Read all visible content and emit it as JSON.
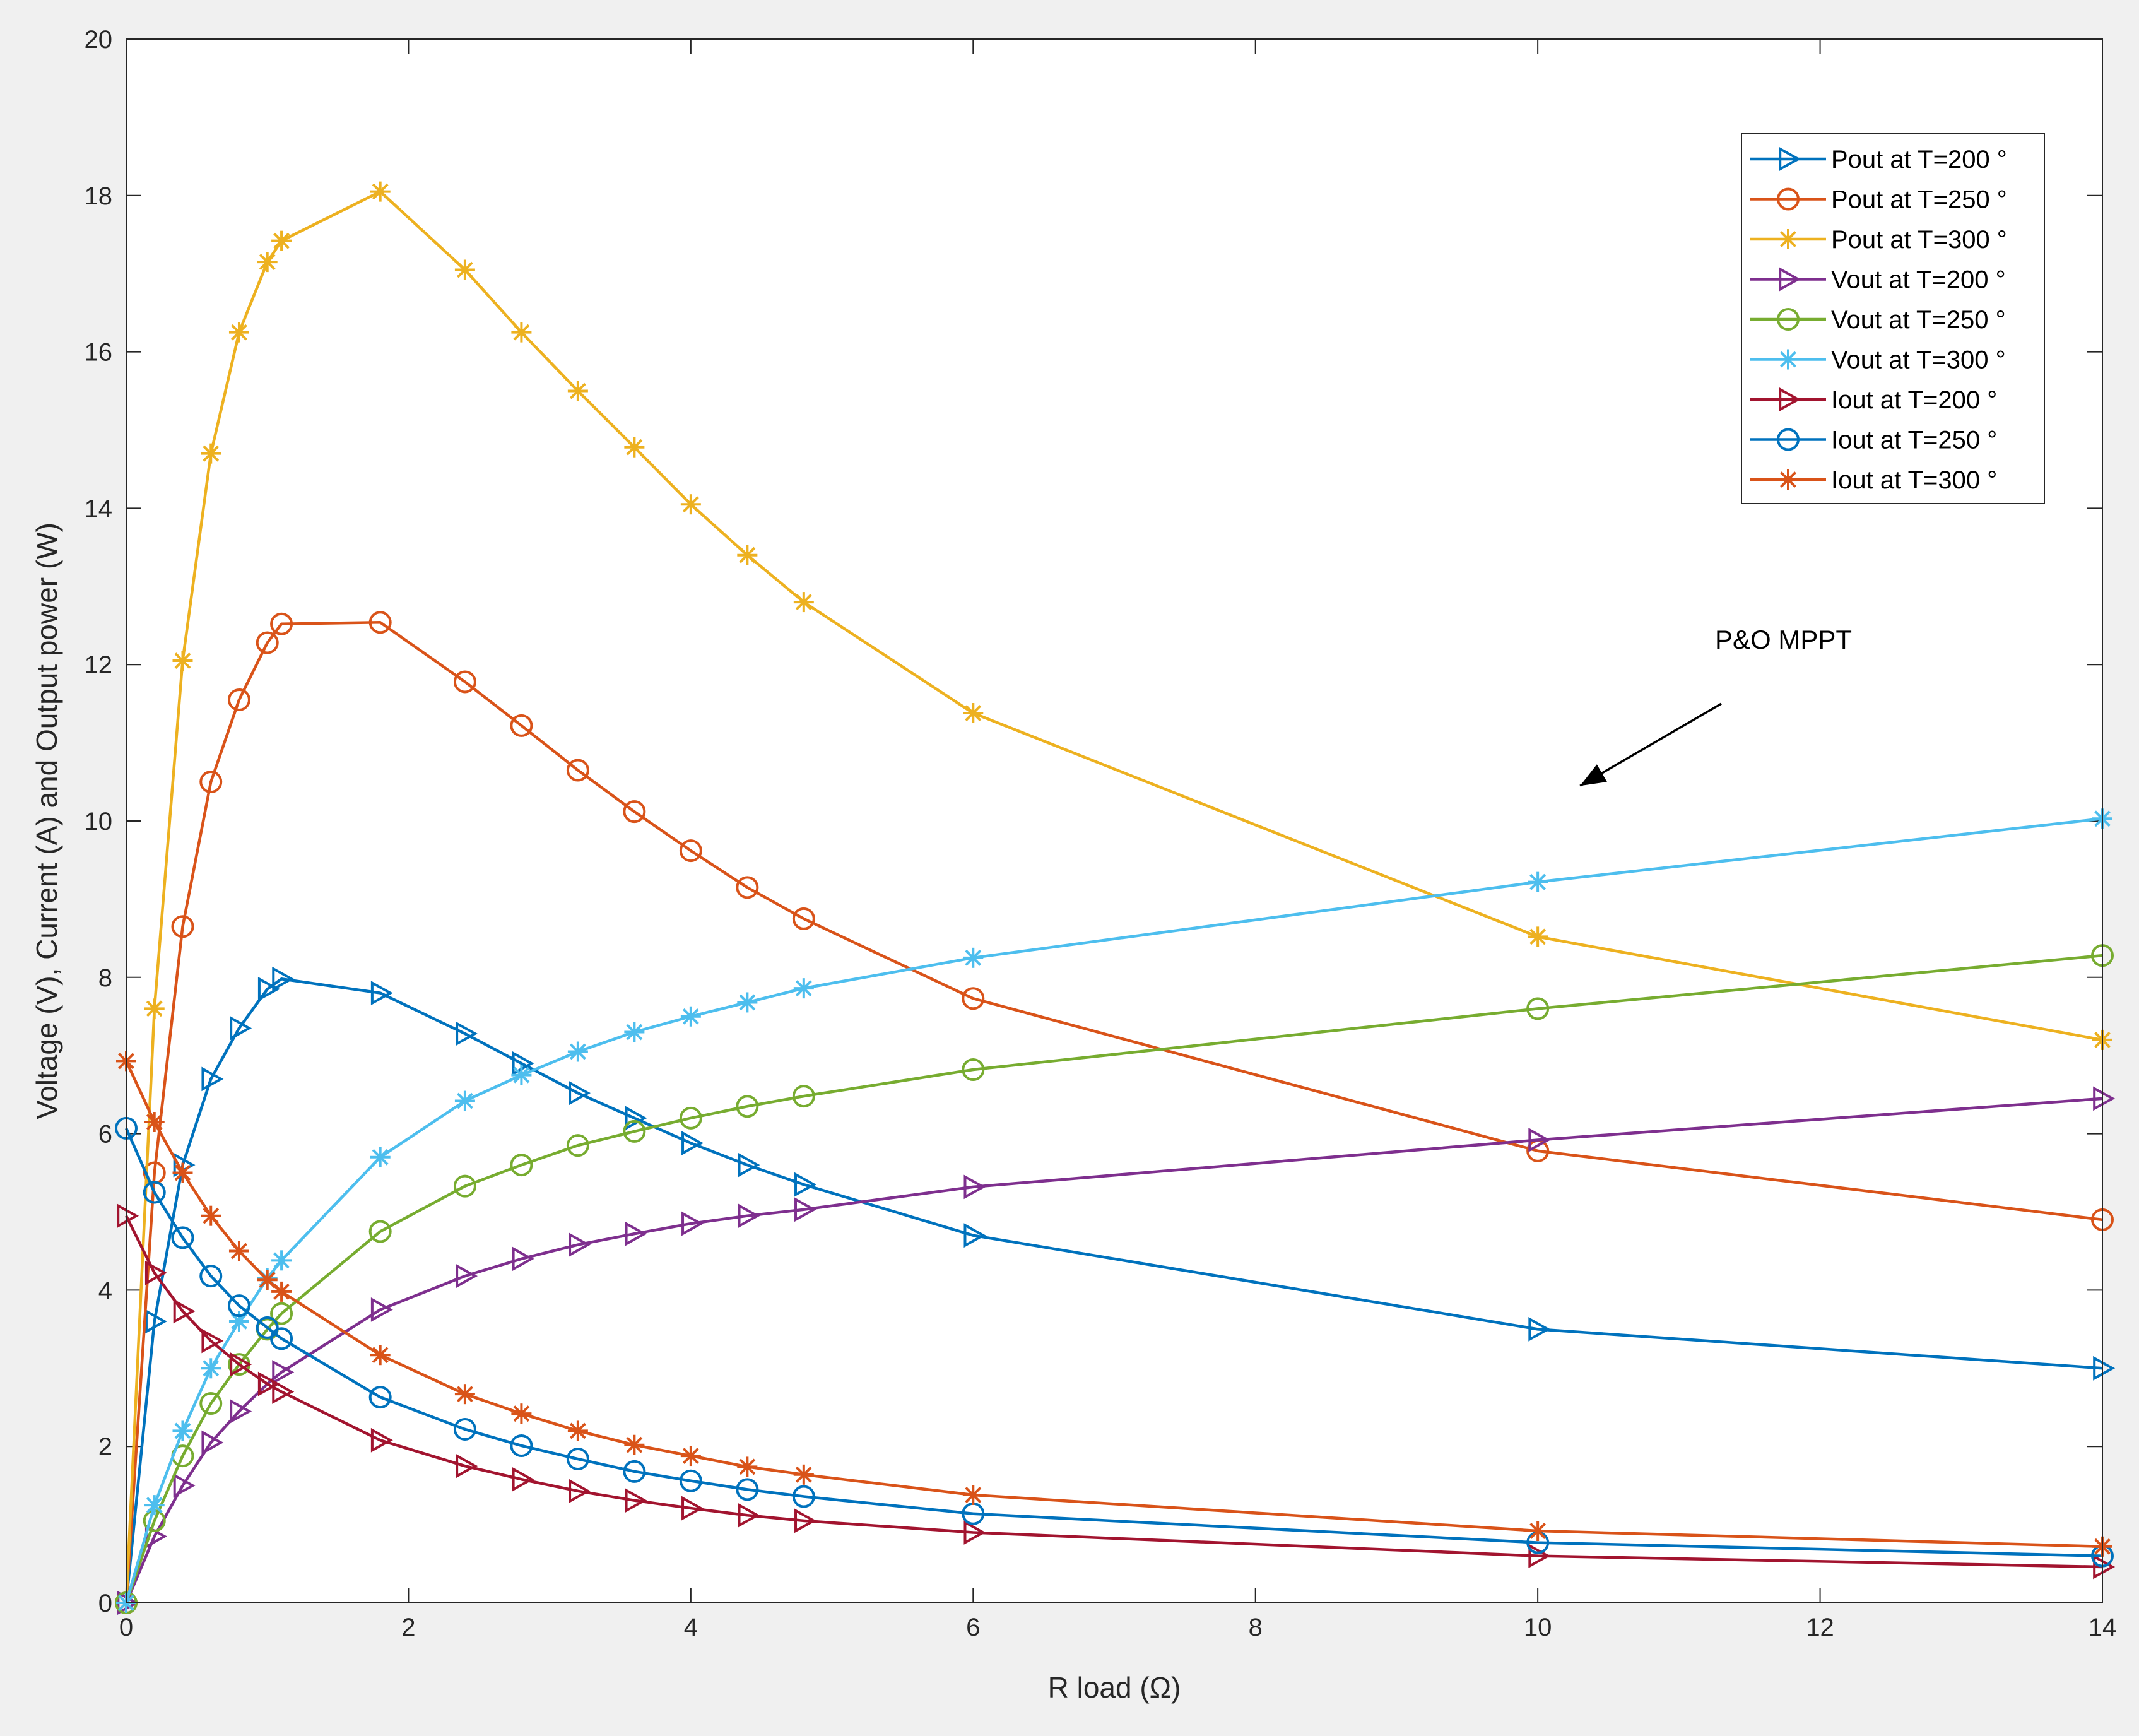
{
  "chart_data": {
    "type": "line",
    "title": "",
    "xlabel": "R load (Ω)",
    "ylabel": "Voltage (V), Current (A) and Output power (W)",
    "xlim": [
      0,
      14
    ],
    "ylim": [
      0,
      20
    ],
    "xticks": [
      0,
      2,
      4,
      6,
      8,
      10,
      12,
      14
    ],
    "yticks": [
      0,
      2,
      4,
      6,
      8,
      10,
      12,
      14,
      16,
      18,
      20
    ],
    "legend_position": "top-right",
    "annotation": {
      "text": "P&O MPPT",
      "arrow_from": [
        11.3,
        11.5
      ],
      "arrow_to": [
        10.3,
        10.45
      ]
    },
    "series": [
      {
        "name": "Pout at T=200 °",
        "color": "#0072BD",
        "marker": "triangle-right",
        "x": [
          0,
          0.2,
          0.4,
          0.6,
          0.8,
          1.0,
          1.1,
          1.8,
          2.4,
          2.8,
          3.2,
          3.6,
          4.0,
          4.4,
          4.8,
          6.0,
          10.0,
          14.0
        ],
        "y": [
          0,
          3.6,
          5.6,
          6.7,
          7.35,
          7.85,
          7.98,
          7.8,
          7.28,
          6.9,
          6.52,
          6.2,
          5.88,
          5.6,
          5.35,
          4.7,
          3.5,
          3.0
        ]
      },
      {
        "name": "Pout at T=250 °",
        "color": "#D95319",
        "marker": "circle",
        "x": [
          0,
          0.2,
          0.4,
          0.6,
          0.8,
          1.0,
          1.1,
          1.8,
          2.4,
          2.8,
          3.2,
          3.6,
          4.0,
          4.4,
          4.8,
          6.0,
          10.0,
          14.0
        ],
        "y": [
          0,
          5.5,
          8.65,
          10.5,
          11.55,
          12.28,
          12.52,
          12.54,
          11.78,
          11.22,
          10.65,
          10.12,
          9.62,
          9.15,
          8.75,
          7.73,
          5.78,
          4.9
        ]
      },
      {
        "name": "Pout at T=300 °",
        "color": "#EDB120",
        "marker": "star",
        "x": [
          0,
          0.2,
          0.4,
          0.6,
          0.8,
          1.0,
          1.1,
          1.8,
          2.4,
          2.8,
          3.2,
          3.6,
          4.0,
          4.4,
          4.8,
          6.0,
          10.0,
          14.0
        ],
        "y": [
          0,
          7.6,
          12.05,
          14.7,
          16.25,
          17.15,
          17.42,
          18.05,
          17.05,
          16.25,
          15.5,
          14.78,
          14.05,
          13.4,
          12.8,
          11.38,
          8.52,
          7.2
        ]
      },
      {
        "name": "Vout at T=200 °",
        "color": "#7E2F8E",
        "marker": "triangle-right",
        "x": [
          0,
          0.2,
          0.4,
          0.6,
          0.8,
          1.0,
          1.1,
          1.8,
          2.4,
          2.8,
          3.2,
          3.6,
          4.0,
          4.4,
          4.8,
          6.0,
          10.0,
          14.0
        ],
        "y": [
          0,
          0.85,
          1.5,
          2.05,
          2.45,
          2.8,
          2.95,
          3.75,
          4.18,
          4.4,
          4.58,
          4.72,
          4.85,
          4.95,
          5.03,
          5.32,
          5.92,
          6.45
        ]
      },
      {
        "name": "Vout at T=250 °",
        "color": "#77AC30",
        "marker": "circle",
        "x": [
          0,
          0.2,
          0.4,
          0.6,
          0.8,
          1.0,
          1.1,
          1.8,
          2.4,
          2.8,
          3.2,
          3.6,
          4.0,
          4.4,
          4.8,
          6.0,
          10.0,
          14.0
        ],
        "y": [
          0,
          1.05,
          1.88,
          2.55,
          3.05,
          3.5,
          3.7,
          4.75,
          5.33,
          5.6,
          5.85,
          6.03,
          6.2,
          6.35,
          6.48,
          6.82,
          7.6,
          8.28
        ]
      },
      {
        "name": "Vout at T=300 °",
        "color": "#4DBEEE",
        "marker": "star",
        "x": [
          0,
          0.2,
          0.4,
          0.6,
          0.8,
          1.0,
          1.1,
          1.8,
          2.4,
          2.8,
          3.2,
          3.6,
          4.0,
          4.4,
          4.8,
          6.0,
          10.0,
          14.0
        ],
        "y": [
          0,
          1.25,
          2.2,
          3.0,
          3.6,
          4.15,
          4.38,
          5.7,
          6.42,
          6.75,
          7.05,
          7.3,
          7.5,
          7.68,
          7.86,
          8.25,
          9.22,
          10.03
        ]
      },
      {
        "name": "Iout at T=200 °",
        "color": "#A2142F",
        "marker": "triangle-right",
        "x": [
          0,
          0.2,
          0.4,
          0.6,
          0.8,
          1.0,
          1.1,
          1.8,
          2.4,
          2.8,
          3.2,
          3.6,
          4.0,
          4.4,
          4.8,
          6.0,
          10.0,
          14.0
        ],
        "y": [
          4.95,
          4.22,
          3.73,
          3.35,
          3.05,
          2.8,
          2.7,
          2.08,
          1.75,
          1.58,
          1.43,
          1.31,
          1.21,
          1.12,
          1.05,
          0.9,
          0.6,
          0.46
        ]
      },
      {
        "name": "Iout at T=250 °",
        "color": "#0072BD",
        "marker": "circle",
        "x": [
          0,
          0.2,
          0.4,
          0.6,
          0.8,
          1.0,
          1.1,
          1.8,
          2.4,
          2.8,
          3.2,
          3.6,
          4.0,
          4.4,
          4.8,
          6.0,
          10.0,
          14.0
        ],
        "y": [
          6.07,
          5.25,
          4.67,
          4.18,
          3.8,
          3.52,
          3.38,
          2.63,
          2.22,
          2.01,
          1.84,
          1.68,
          1.56,
          1.45,
          1.36,
          1.14,
          0.77,
          0.6
        ]
      },
      {
        "name": "Iout at T=300 °",
        "color": "#D95319",
        "marker": "star",
        "x": [
          0,
          0.2,
          0.4,
          0.6,
          0.8,
          1.0,
          1.1,
          1.8,
          2.4,
          2.8,
          3.2,
          3.6,
          4.0,
          4.4,
          4.8,
          6.0,
          10.0,
          14.0
        ],
        "y": [
          6.93,
          6.15,
          5.5,
          4.95,
          4.5,
          4.13,
          3.98,
          3.17,
          2.67,
          2.42,
          2.2,
          2.02,
          1.88,
          1.74,
          1.64,
          1.38,
          0.92,
          0.72
        ]
      }
    ]
  }
}
